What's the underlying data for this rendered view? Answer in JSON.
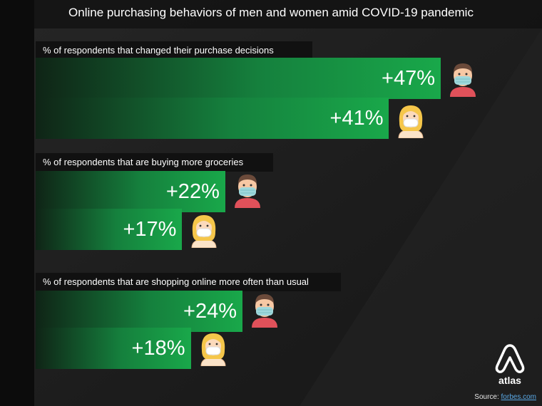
{
  "title": "Online purchasing behaviors of men and women amid COVID-19 pandemic",
  "source_label": "Source:",
  "source_link": "forbes.com",
  "logo_text": "atlas",
  "colors": {
    "bar_end": "#19a84a",
    "bar_start": "#0f2416",
    "label_bg": "#111111"
  },
  "chart_data": {
    "type": "bar",
    "orientation": "horizontal",
    "title": "Online purchasing behaviors of men and women amid COVID-19 pandemic",
    "unit": "%",
    "xlim": [
      0,
      55
    ],
    "groups": [
      {
        "label": "% of respondents that changed their purchase decisions",
        "bars": [
          {
            "gender": "men",
            "value": 47,
            "value_label": "+47%"
          },
          {
            "gender": "women",
            "value": 41,
            "value_label": "+41%"
          }
        ]
      },
      {
        "label": "% of respondents that are buying more groceries",
        "bars": [
          {
            "gender": "men",
            "value": 22,
            "value_label": "+22%"
          },
          {
            "gender": "women",
            "value": 17,
            "value_label": "+17%"
          }
        ]
      },
      {
        "label": "% of respondents that are shopping online more often than usual",
        "bars": [
          {
            "gender": "men",
            "value": 24,
            "value_label": "+24%"
          },
          {
            "gender": "women",
            "value": 18,
            "value_label": "+18%"
          }
        ]
      }
    ]
  }
}
